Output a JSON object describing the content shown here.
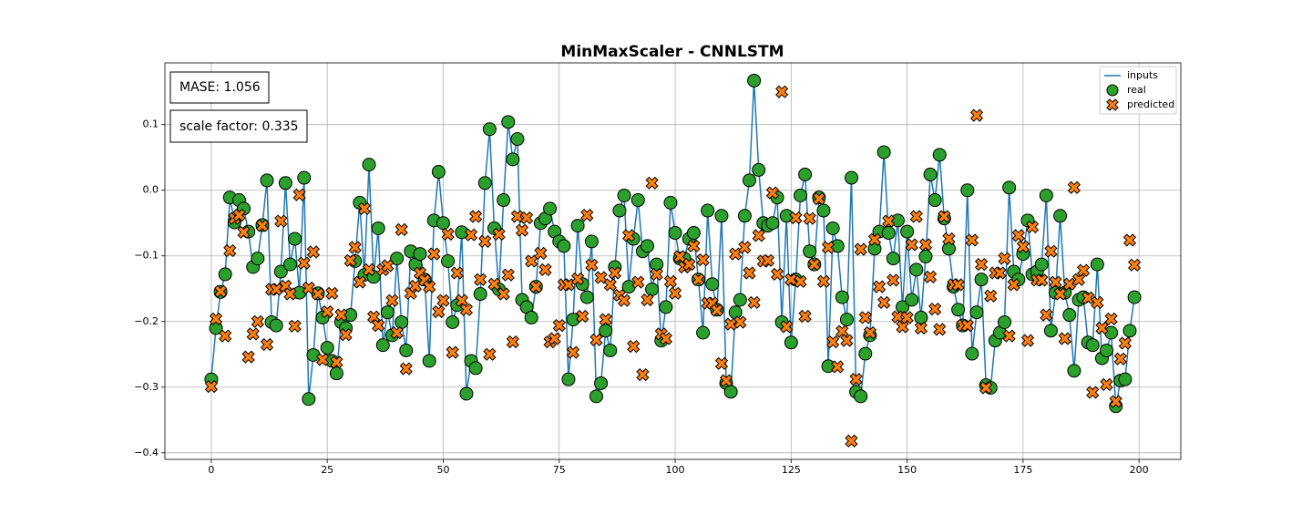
{
  "chart_data": {
    "type": "scatter",
    "title": "MinMaxScaler - CNNLSTM",
    "annotations": [
      "MASE: 1.056",
      "scale factor: 0.335"
    ],
    "xlim": [
      -10,
      209
    ],
    "ylim": [
      -0.41,
      0.194
    ],
    "xticks": [
      0,
      25,
      50,
      75,
      100,
      125,
      150,
      175,
      200
    ],
    "yticks": [
      {
        "value": -0.4,
        "label": "−0.4"
      },
      {
        "value": -0.3,
        "label": "−0.3"
      },
      {
        "value": -0.2,
        "label": "−0.2"
      },
      {
        "value": -0.1,
        "label": "−0.1"
      },
      {
        "value": 0,
        "label": "0.0"
      },
      0.1
    ],
    "grid": true,
    "legend": "upper right",
    "x": [
      0,
      1,
      2,
      3,
      4,
      5,
      6,
      7,
      8,
      9,
      10,
      11,
      12,
      13,
      14,
      15,
      16,
      17,
      18,
      19,
      20,
      21,
      22,
      23,
      24,
      25,
      26,
      27,
      28,
      29,
      30,
      31,
      32,
      33,
      34,
      35,
      36,
      37,
      38,
      39,
      40,
      41,
      42,
      43,
      44,
      45,
      46,
      47,
      48,
      49,
      50,
      51,
      52,
      53,
      54,
      55,
      56,
      57,
      58,
      59,
      60,
      61,
      62,
      63,
      64,
      65,
      66,
      67,
      68,
      69,
      70,
      71,
      72,
      73,
      74,
      75,
      76,
      77,
      78,
      79,
      80,
      81,
      82,
      83,
      84,
      85,
      86,
      87,
      88,
      89,
      90,
      91,
      92,
      93,
      94,
      95,
      96,
      97,
      98,
      99,
      100,
      101,
      102,
      103,
      104,
      105,
      106,
      107,
      108,
      109,
      110,
      111,
      112,
      113,
      114,
      115,
      116,
      117,
      118,
      119,
      120,
      121,
      122,
      123,
      124,
      125,
      126,
      127,
      128,
      129,
      130,
      131,
      132,
      133,
      134,
      135,
      136,
      137,
      138,
      139,
      140,
      141,
      142,
      143,
      144,
      145,
      146,
      147,
      148,
      149,
      150,
      151,
      152,
      153,
      154,
      155,
      156,
      157,
      158,
      159,
      160,
      161,
      162,
      163,
      164,
      165,
      166,
      167,
      168,
      169,
      170,
      171,
      172,
      173,
      174,
      175,
      176,
      177,
      178,
      179,
      180,
      181,
      182,
      183,
      184,
      185,
      186,
      187,
      188,
      189,
      190,
      191,
      192,
      193,
      194,
      195,
      196,
      197,
      198,
      199
    ],
    "series": [
      {
        "name": "inputs",
        "kind": "line",
        "color": "#1f77b4",
        "values": [
          -0.288,
          -0.21,
          -0.155,
          -0.128,
          -0.011,
          -0.049,
          -0.015,
          -0.028,
          -0.063,
          -0.117,
          -0.104,
          -0.053,
          0.015,
          -0.201,
          -0.206,
          -0.124,
          0.011,
          -0.113,
          -0.074,
          -0.156,
          0.019,
          -0.318,
          -0.251,
          -0.157,
          -0.194,
          -0.24,
          -0.26,
          -0.279,
          -0.201,
          -0.21,
          -0.19,
          -0.108,
          -0.019,
          -0.129,
          0.039,
          -0.132,
          -0.058,
          -0.236,
          -0.186,
          -0.221,
          -0.104,
          -0.201,
          -0.244,
          -0.093,
          -0.113,
          -0.097,
          -0.136,
          -0.26,
          -0.046,
          0.028,
          -0.05,
          -0.108,
          -0.201,
          -0.175,
          -0.064,
          -0.31,
          -0.26,
          -0.271,
          -0.158,
          0.011,
          0.093,
          -0.058,
          -0.151,
          -0.015,
          0.104,
          0.047,
          0.078,
          -0.167,
          -0.178,
          -0.194,
          -0.147,
          -0.05,
          -0.043,
          -0.028,
          -0.063,
          -0.078,
          -0.085,
          -0.288,
          -0.197,
          -0.054,
          -0.143,
          -0.163,
          -0.078,
          -0.314,
          -0.294,
          -0.214,
          -0.244,
          -0.117,
          -0.031,
          -0.008,
          -0.147,
          -0.074,
          -0.015,
          -0.093,
          -0.085,
          -0.151,
          -0.113,
          -0.229,
          -0.178,
          -0.019,
          -0.065,
          -0.104,
          -0.104,
          -0.074,
          -0.065,
          -0.136,
          -0.217,
          -0.031,
          -0.143,
          -0.182,
          -0.039,
          -0.294,
          -0.307,
          -0.186,
          -0.167,
          -0.039,
          0.015,
          0.167,
          0.031,
          -0.05,
          -0.054,
          -0.05,
          -0.011,
          -0.201,
          -0.039,
          -0.232,
          -0.136,
          -0.008,
          0.024,
          -0.093,
          -0.113,
          -0.011,
          -0.031,
          -0.268,
          -0.058,
          -0.085,
          -0.163,
          -0.197,
          0.019,
          -0.307,
          -0.314,
          -0.249,
          -0.221,
          -0.089,
          -0.063,
          0.058,
          -0.065,
          -0.104,
          -0.046,
          -0.178,
          -0.063,
          -0.167,
          -0.121,
          -0.194,
          -0.101,
          0.024,
          -0.015,
          0.054,
          -0.043,
          -0.089,
          -0.147,
          -0.182,
          -0.206,
          0.0,
          -0.249,
          -0.186,
          -0.136,
          -0.297,
          -0.301,
          -0.229,
          -0.217,
          -0.201,
          0.004,
          -0.124,
          -0.136,
          -0.097,
          -0.046,
          -0.128,
          -0.124,
          -0.113,
          -0.008,
          -0.214,
          -0.156,
          -0.039,
          -0.156,
          -0.19,
          -0.275,
          -0.167,
          -0.163,
          -0.232,
          -0.236,
          -0.113,
          -0.256,
          -0.244,
          -0.217,
          -0.329,
          -0.29,
          -0.288,
          -0.214,
          -0.163
        ]
      },
      {
        "name": "real",
        "kind": "circle",
        "color": "#2ca02c",
        "values": [
          -0.288,
          -0.21,
          -0.155,
          -0.128,
          -0.011,
          -0.049,
          -0.015,
          -0.028,
          -0.063,
          -0.117,
          -0.104,
          -0.053,
          0.015,
          -0.201,
          -0.206,
          -0.124,
          0.011,
          -0.113,
          -0.074,
          -0.156,
          0.019,
          -0.318,
          -0.251,
          -0.157,
          -0.194,
          -0.24,
          -0.26,
          -0.279,
          -0.201,
          -0.21,
          -0.19,
          -0.108,
          -0.019,
          -0.129,
          0.039,
          -0.132,
          -0.058,
          -0.236,
          -0.186,
          -0.221,
          -0.104,
          -0.201,
          -0.244,
          -0.093,
          -0.113,
          -0.097,
          -0.136,
          -0.26,
          -0.046,
          0.028,
          -0.05,
          -0.108,
          -0.201,
          -0.175,
          -0.064,
          -0.31,
          -0.26,
          -0.271,
          -0.158,
          0.011,
          0.093,
          -0.058,
          -0.151,
          -0.015,
          0.104,
          0.047,
          0.078,
          -0.167,
          -0.178,
          -0.194,
          -0.147,
          -0.05,
          -0.043,
          -0.028,
          -0.063,
          -0.078,
          -0.085,
          -0.288,
          -0.197,
          -0.054,
          -0.143,
          -0.163,
          -0.078,
          -0.314,
          -0.294,
          -0.214,
          -0.244,
          -0.117,
          -0.031,
          -0.008,
          -0.147,
          -0.074,
          -0.015,
          -0.093,
          -0.085,
          -0.151,
          -0.113,
          -0.229,
          -0.178,
          -0.019,
          -0.065,
          -0.104,
          -0.104,
          -0.074,
          -0.065,
          -0.136,
          -0.217,
          -0.031,
          -0.143,
          -0.182,
          -0.039,
          -0.294,
          -0.307,
          -0.186,
          -0.167,
          -0.039,
          0.015,
          0.167,
          0.031,
          -0.05,
          -0.054,
          -0.05,
          -0.011,
          -0.201,
          -0.039,
          -0.232,
          -0.136,
          -0.008,
          0.024,
          -0.093,
          -0.113,
          -0.011,
          -0.031,
          -0.268,
          -0.058,
          -0.085,
          -0.163,
          -0.197,
          0.019,
          -0.307,
          -0.314,
          -0.249,
          -0.221,
          -0.089,
          -0.063,
          0.058,
          -0.065,
          -0.104,
          -0.046,
          -0.178,
          -0.063,
          -0.167,
          -0.121,
          -0.194,
          -0.101,
          0.024,
          -0.015,
          0.054,
          -0.043,
          -0.089,
          -0.147,
          -0.182,
          -0.206,
          0.0,
          -0.249,
          -0.186,
          -0.136,
          -0.297,
          -0.301,
          -0.229,
          -0.217,
          -0.201,
          0.004,
          -0.124,
          -0.136,
          -0.097,
          -0.046,
          -0.128,
          -0.124,
          -0.113,
          -0.008,
          -0.214,
          -0.156,
          -0.039,
          -0.156,
          -0.19,
          -0.275,
          -0.167,
          -0.163,
          -0.232,
          -0.236,
          -0.113,
          -0.256,
          -0.244,
          -0.217,
          -0.329,
          -0.29,
          -0.288,
          -0.214,
          -0.163
        ]
      },
      {
        "name": "predicted",
        "kind": "x",
        "color": "#ff7f0e",
        "values": [
          -0.299,
          -0.196,
          -0.154,
          -0.222,
          -0.092,
          -0.043,
          -0.038,
          -0.064,
          -0.254,
          -0.219,
          -0.2,
          -0.054,
          -0.235,
          -0.151,
          -0.151,
          -0.047,
          -0.146,
          -0.158,
          -0.207,
          -0.007,
          -0.111,
          -0.149,
          -0.094,
          -0.158,
          -0.258,
          -0.185,
          -0.157,
          -0.262,
          -0.19,
          -0.22,
          -0.107,
          -0.087,
          -0.14,
          -0.028,
          -0.121,
          -0.193,
          -0.206,
          -0.121,
          -0.115,
          -0.168,
          -0.217,
          -0.06,
          -0.272,
          -0.157,
          -0.146,
          -0.126,
          -0.137,
          -0.147,
          -0.097,
          -0.185,
          -0.168,
          -0.067,
          -0.247,
          -0.126,
          -0.168,
          -0.182,
          -0.068,
          -0.04,
          -0.136,
          -0.078,
          -0.25,
          -0.143,
          -0.067,
          -0.158,
          -0.129,
          -0.231,
          -0.04,
          -0.061,
          -0.042,
          -0.108,
          -0.147,
          -0.096,
          -0.121,
          -0.231,
          -0.226,
          -0.206,
          -0.144,
          -0.144,
          -0.247,
          -0.135,
          -0.192,
          -0.038,
          -0.114,
          -0.228,
          -0.133,
          -0.197,
          -0.144,
          -0.126,
          -0.16,
          -0.168,
          -0.069,
          -0.238,
          -0.14,
          -0.281,
          -0.167,
          0.011,
          -0.128,
          -0.219,
          -0.226,
          -0.139,
          -0.157,
          -0.101,
          -0.117,
          -0.113,
          -0.085,
          -0.136,
          -0.106,
          -0.172,
          -0.172,
          -0.183,
          -0.264,
          -0.29,
          -0.204,
          -0.097,
          -0.201,
          -0.087,
          -0.126,
          -0.171,
          -0.069,
          -0.108,
          -0.107,
          -0.004,
          -0.128,
          0.15,
          -0.208,
          -0.136,
          -0.042,
          -0.139,
          -0.192,
          -0.043,
          -0.113,
          -0.013,
          -0.139,
          -0.087,
          -0.231,
          -0.269,
          -0.215,
          -0.229,
          -0.382,
          -0.288,
          -0.09,
          -0.194,
          -0.217,
          -0.075,
          -0.147,
          -0.171,
          -0.047,
          -0.137,
          -0.193,
          -0.208,
          -0.194,
          -0.083,
          -0.04,
          -0.21,
          -0.083,
          -0.132,
          -0.181,
          -0.212,
          -0.04,
          -0.074,
          -0.144,
          -0.144,
          -0.206,
          -0.206,
          -0.076,
          0.114,
          -0.113,
          -0.301,
          -0.161,
          -0.126,
          -0.126,
          -0.104,
          -0.222,
          -0.144,
          -0.069,
          -0.086,
          -0.229,
          -0.056,
          -0.137,
          -0.137,
          -0.19,
          -0.093,
          -0.14,
          -0.158,
          -0.226,
          -0.143,
          0.004,
          -0.136,
          -0.122,
          -0.164,
          -0.308,
          -0.171,
          -0.21,
          -0.296,
          -0.196,
          -0.322,
          -0.257,
          -0.233,
          -0.076,
          -0.114
        ]
      }
    ]
  }
}
